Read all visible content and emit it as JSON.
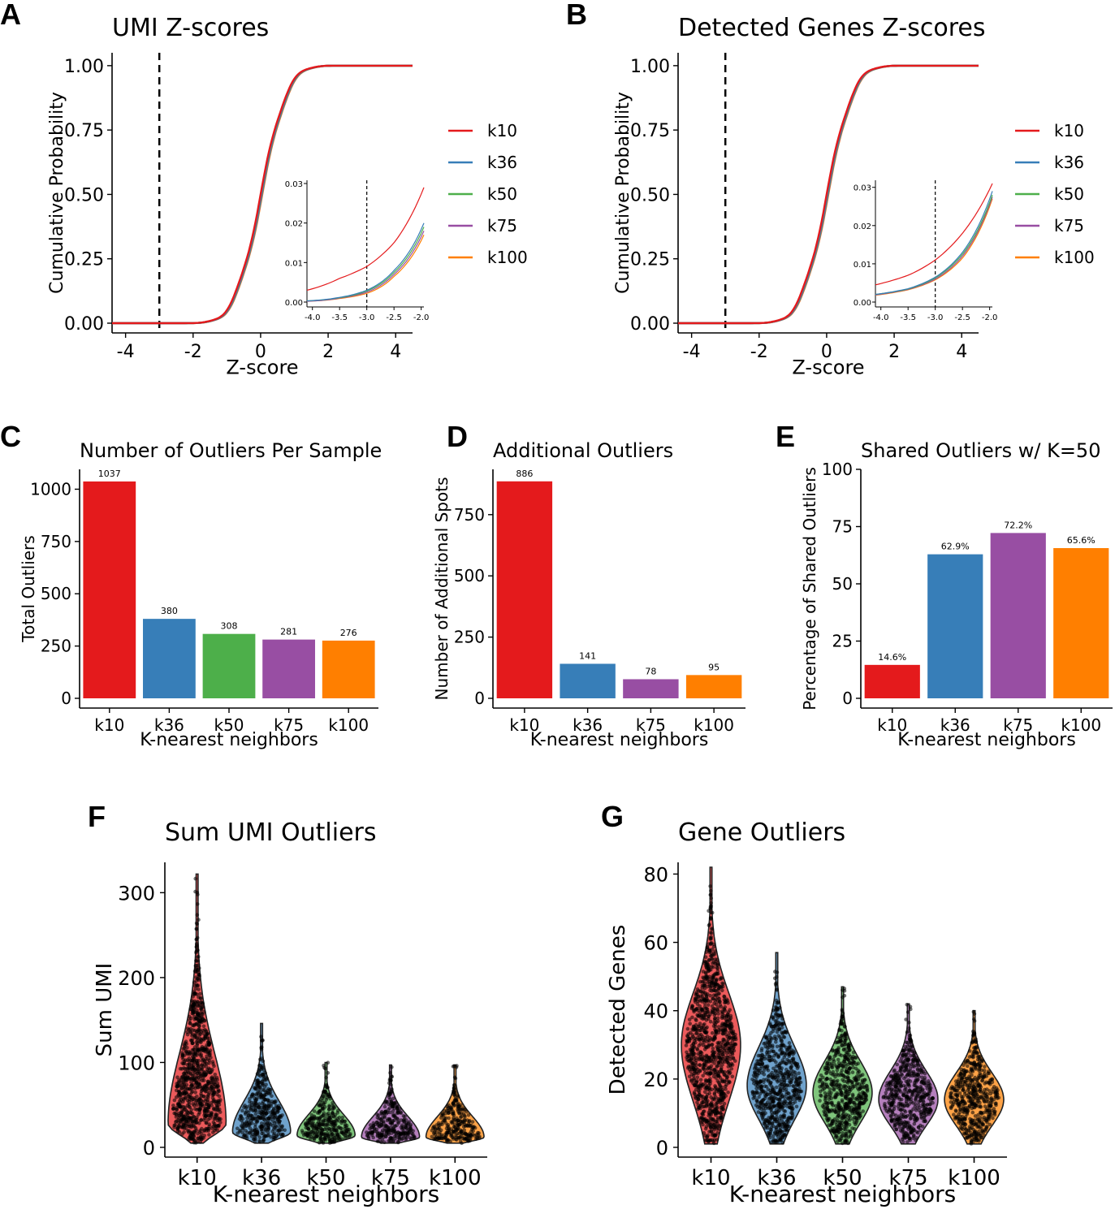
{
  "colors": {
    "k10": "#E41A1C",
    "k36": "#377EB8",
    "k50": "#4DAF4A",
    "k75": "#984EA3",
    "k100": "#FF7F00"
  },
  "chart_data": [
    {
      "id": "A",
      "panel_label": "A",
      "type": "line",
      "title": "UMI Z-scores",
      "xlabel": "Z-score",
      "ylabel": "Cumulative Probability",
      "xlim": [
        -4.4,
        4.5
      ],
      "ylim": [
        0,
        1
      ],
      "xticks": [
        "-4",
        "-2",
        "0",
        "2",
        "4"
      ],
      "yticks": [
        "0.00",
        "0.25",
        "0.50",
        "0.75",
        "1.00"
      ],
      "vline": -3,
      "legend": [
        "k10",
        "k36",
        "k50",
        "k75",
        "k100"
      ],
      "series": [
        {
          "name": "k10",
          "shift": 0.0
        },
        {
          "name": "k36",
          "shift": 0.02
        },
        {
          "name": "k50",
          "shift": 0.03
        },
        {
          "name": "k75",
          "shift": 0.04
        },
        {
          "name": "k100",
          "shift": 0.05
        }
      ],
      "inset": {
        "xlim": [
          -4.1,
          -1.95
        ],
        "ylim": [
          0,
          0.03
        ],
        "xticks": [
          "-4.0",
          "-3.5",
          "-3.0",
          "-2.5",
          "-2.0"
        ],
        "yticks": [
          "0.00",
          "0.01",
          "0.02",
          "0.03"
        ],
        "vline": -3,
        "series": [
          {
            "name": "k10",
            "x": [
              -4.1,
              -3.5,
              -3.0,
              -2.5,
              -1.95
            ],
            "y": [
              0.003,
              0.006,
              0.009,
              0.015,
              0.029
            ]
          },
          {
            "name": "k36",
            "x": [
              -4.1,
              -3.5,
              -3.0,
              -2.5,
              -1.95
            ],
            "y": [
              0.0003,
              0.0012,
              0.003,
              0.008,
              0.02
            ]
          },
          {
            "name": "k50",
            "x": [
              -4.1,
              -3.5,
              -3.0,
              -2.5,
              -1.95
            ],
            "y": [
              0.0003,
              0.0011,
              0.0028,
              0.0075,
              0.019
            ]
          },
          {
            "name": "k75",
            "x": [
              -4.1,
              -3.5,
              -3.0,
              -2.5,
              -1.95
            ],
            "y": [
              0.0002,
              0.001,
              0.0025,
              0.007,
              0.018
            ]
          },
          {
            "name": "k100",
            "x": [
              -4.1,
              -3.5,
              -3.0,
              -2.5,
              -1.95
            ],
            "y": [
              0.0002,
              0.0009,
              0.0022,
              0.0065,
              0.017
            ]
          }
        ]
      }
    },
    {
      "id": "B",
      "panel_label": "B",
      "type": "line",
      "title": "Detected Genes Z-scores",
      "xlabel": "Z-score",
      "ylabel": "Cumulative Probability",
      "xlim": [
        -4.4,
        4.5
      ],
      "ylim": [
        0,
        1
      ],
      "xticks": [
        "-4",
        "-2",
        "0",
        "2",
        "4"
      ],
      "yticks": [
        "0.00",
        "0.25",
        "0.50",
        "0.75",
        "1.00"
      ],
      "vline": -3,
      "legend": [
        "k10",
        "k36",
        "k50",
        "k75",
        "k100"
      ],
      "series": [
        {
          "name": "k10",
          "shift": 0.0
        },
        {
          "name": "k36",
          "shift": 0.02
        },
        {
          "name": "k50",
          "shift": 0.03
        },
        {
          "name": "k75",
          "shift": 0.04
        },
        {
          "name": "k100",
          "shift": 0.05
        }
      ],
      "inset": {
        "xlim": [
          -4.1,
          -1.95
        ],
        "ylim": [
          0,
          0.031
        ],
        "xticks": [
          "-4.0",
          "-3.5",
          "-3.0",
          "-2.5",
          "-2.0"
        ],
        "yticks": [
          "0.00",
          "0.01",
          "0.02",
          "0.03"
        ],
        "vline": -3,
        "series": [
          {
            "name": "k10",
            "x": [
              -4.1,
              -3.5,
              -3.0,
              -2.5,
              -1.95
            ],
            "y": [
              0.0045,
              0.007,
              0.011,
              0.018,
              0.031
            ]
          },
          {
            "name": "k36",
            "x": [
              -4.1,
              -3.5,
              -3.0,
              -2.5,
              -1.95
            ],
            "y": [
              0.002,
              0.0035,
              0.0065,
              0.013,
              0.029
            ]
          },
          {
            "name": "k50",
            "x": [
              -4.1,
              -3.5,
              -3.0,
              -2.5,
              -1.95
            ],
            "y": [
              0.002,
              0.0034,
              0.0063,
              0.0125,
              0.028
            ]
          },
          {
            "name": "k75",
            "x": [
              -4.1,
              -3.5,
              -3.0,
              -2.5,
              -1.95
            ],
            "y": [
              0.0019,
              0.0033,
              0.006,
              0.012,
              0.0275
            ]
          },
          {
            "name": "k100",
            "x": [
              -4.1,
              -3.5,
              -3.0,
              -2.5,
              -1.95
            ],
            "y": [
              0.0018,
              0.0032,
              0.0058,
              0.0115,
              0.027
            ]
          }
        ]
      }
    },
    {
      "id": "C",
      "panel_label": "C",
      "type": "bar",
      "title": "Number of Outliers Per Sample",
      "xlabel": "K-nearest neighbors",
      "ylabel": "Total Outliers",
      "categories": [
        "k10",
        "k36",
        "k50",
        "k75",
        "k100"
      ],
      "values": [
        1037,
        380,
        308,
        281,
        276
      ],
      "labels": [
        "1037",
        "380",
        "308",
        "281",
        "276"
      ],
      "ylim": [
        0,
        1095
      ],
      "yticks": [
        0,
        250,
        500,
        750,
        1000
      ]
    },
    {
      "id": "D",
      "panel_label": "D",
      "type": "bar",
      "title": "Additional Outliers",
      "xlabel": "K-nearest neighbors",
      "ylabel": "Number of Additional Spots",
      "categories": [
        "k10",
        "k36",
        "k75",
        "k100"
      ],
      "values": [
        886,
        141,
        78,
        95
      ],
      "labels": [
        "886",
        "141",
        "78",
        "95"
      ],
      "ylim": [
        0,
        935
      ],
      "yticks": [
        0,
        250,
        500,
        750
      ]
    },
    {
      "id": "E",
      "panel_label": "E",
      "type": "bar",
      "title": "Shared Outliers w/ K=50",
      "xlabel": "K-nearest neighbors",
      "ylabel": "Percentage of Shared Outliers",
      "categories": [
        "k10",
        "k36",
        "k75",
        "k100"
      ],
      "values": [
        14.6,
        62.9,
        72.2,
        65.6
      ],
      "labels": [
        "14.6%",
        "62.9%",
        "72.2%",
        "65.6%"
      ],
      "ylim": [
        0,
        100
      ],
      "yticks": [
        0,
        25,
        50,
        75,
        100
      ]
    },
    {
      "id": "F",
      "panel_label": "F",
      "type": "violin",
      "title": "Sum UMI Outliers",
      "xlabel": "K-nearest neighbors",
      "ylabel": "Sum UMI",
      "categories": [
        "k10",
        "k36",
        "k50",
        "k75",
        "k100"
      ],
      "max": [
        322,
        146,
        100,
        97,
        97
      ],
      "min": [
        5,
        5,
        5,
        5,
        5
      ],
      "mode": [
        28,
        18,
        14,
        12,
        12
      ],
      "n": [
        900,
        380,
        308,
        281,
        276
      ],
      "ylim": [
        0,
        330
      ],
      "yticks": [
        0,
        100,
        200,
        300
      ]
    },
    {
      "id": "G",
      "panel_label": "G",
      "type": "violin",
      "title": "Gene Outliers",
      "xlabel": "K-nearest neighbors",
      "ylabel": "Detected Genes",
      "categories": [
        "k10",
        "k36",
        "k50",
        "k75",
        "k100"
      ],
      "max": [
        82,
        57,
        47,
        42,
        40
      ],
      "min": [
        1,
        1,
        1,
        1,
        1
      ],
      "mode": [
        30,
        18,
        16,
        14,
        14
      ],
      "n": [
        1037,
        700,
        600,
        560,
        540
      ],
      "ylim": [
        0,
        82
      ],
      "yticks": [
        0,
        20,
        40,
        60,
        80
      ]
    }
  ]
}
